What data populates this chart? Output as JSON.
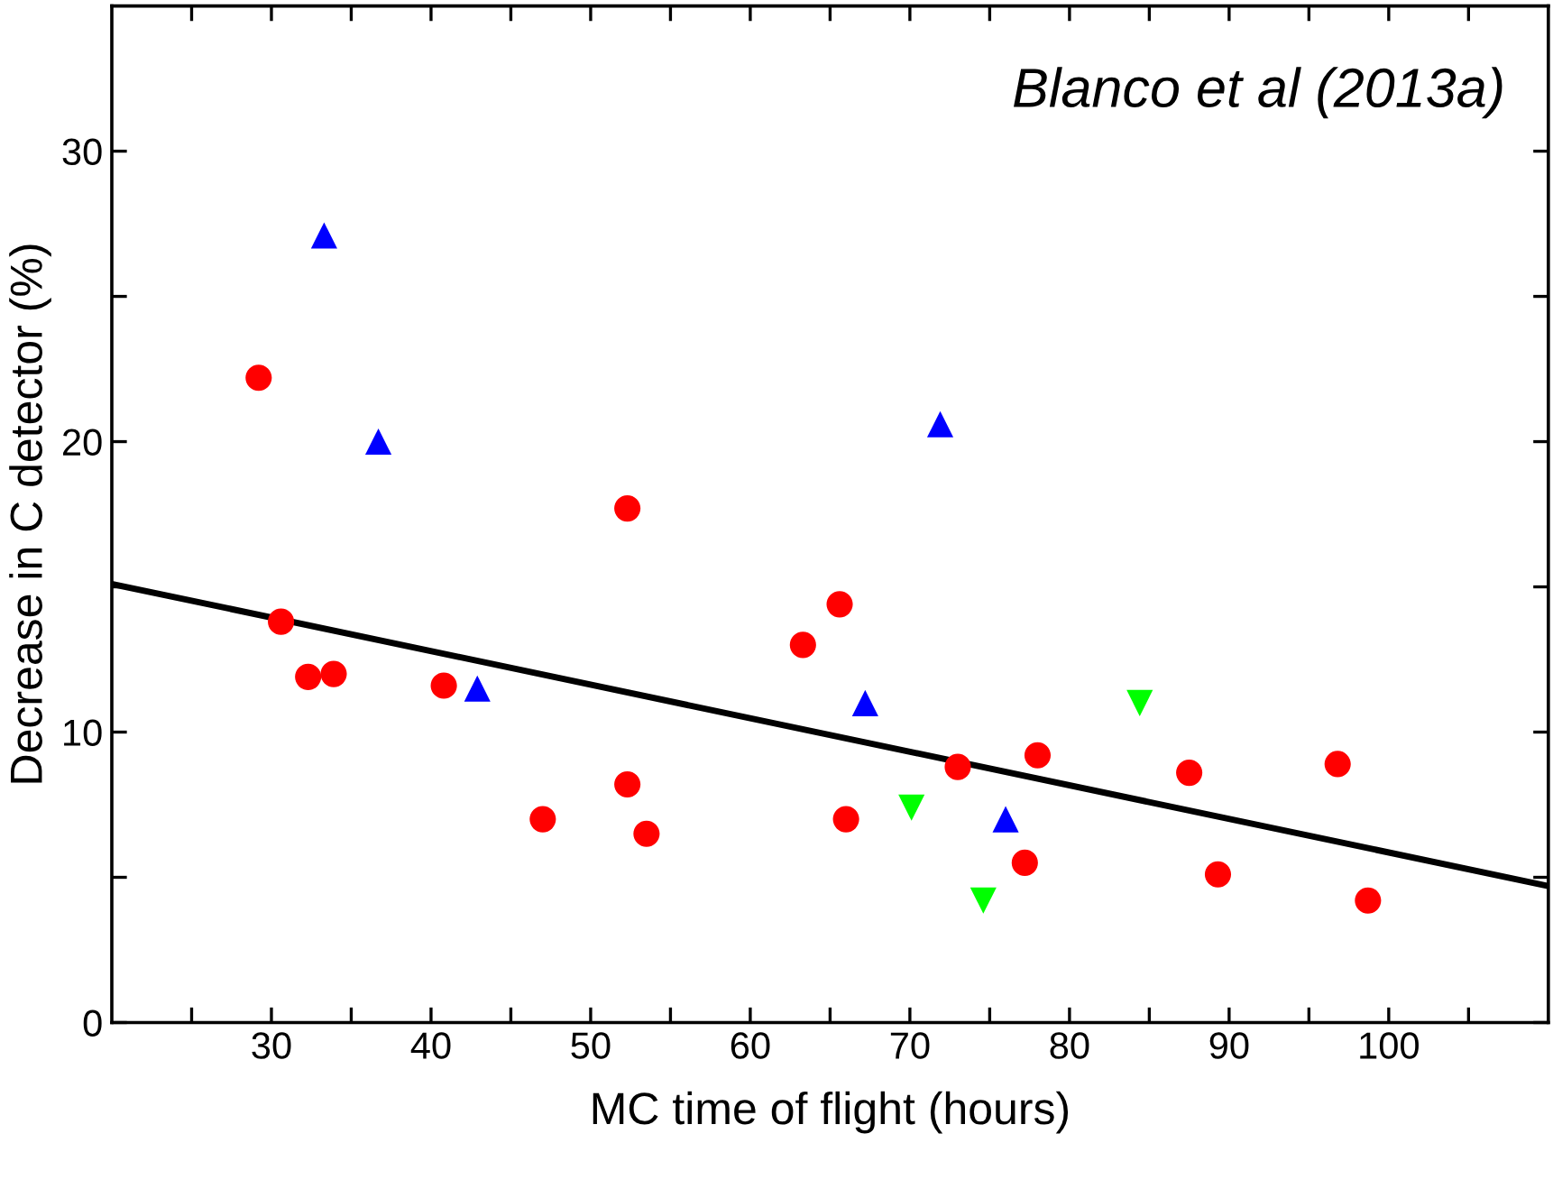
{
  "chart_data": {
    "type": "scatter",
    "xlabel": "MC time of flight (hours)",
    "ylabel": "Decrease in C detector (%)",
    "annotations": [
      "Blanco et al (2013a)"
    ],
    "xlim": [
      20,
      110
    ],
    "ylim": [
      0,
      35
    ],
    "xticks": [
      {
        "value": 25,
        "label": null
      },
      30,
      {
        "value": 35,
        "label": null
      },
      40,
      {
        "value": 45,
        "label": null
      },
      50,
      {
        "value": 55,
        "label": null
      },
      60,
      {
        "value": 65,
        "label": null
      },
      70,
      {
        "value": 75,
        "label": null
      },
      80,
      {
        "value": 85,
        "label": null
      },
      90,
      {
        "value": 95,
        "label": null
      },
      100,
      {
        "value": 105,
        "label": null
      }
    ],
    "yticks": [
      0,
      {
        "value": 5,
        "label": null
      },
      10,
      {
        "value": 15,
        "label": null
      },
      20,
      {
        "value": 25,
        "label": null
      },
      30
    ],
    "grid": false,
    "legend": false,
    "series": [
      {
        "marker": "circle",
        "color": "#ff0000",
        "x": [
          29.2,
          30.6,
          32.3,
          33.9,
          40.8,
          47.0,
          52.3,
          52.3,
          53.5,
          63.3,
          65.6,
          66.0,
          73.0,
          77.2,
          78.0,
          87.5,
          89.3,
          96.8,
          98.7
        ],
        "values": [
          22.2,
          13.8,
          11.9,
          12.0,
          11.6,
          7.0,
          17.7,
          8.2,
          6.5,
          13.0,
          14.4,
          7.0,
          8.8,
          5.5,
          9.2,
          8.6,
          5.1,
          8.9,
          4.2
        ]
      },
      {
        "marker": "triangle",
        "color": "#0000ff",
        "x": [
          33.3,
          36.7,
          42.9,
          67.2,
          71.9,
          76.0
        ],
        "values": [
          27.1,
          20.0,
          11.5,
          11.0,
          20.6,
          7.0
        ]
      },
      {
        "marker": "triangle_down",
        "color": "#00ff00",
        "x": [
          70.1,
          74.6,
          84.4
        ],
        "values": [
          7.4,
          4.2,
          11.0
        ]
      },
      {
        "type": "line",
        "marker": "none",
        "line_style": "solid",
        "color": "#000000",
        "x": [
          20,
          110
        ],
        "values": [
          15.1,
          4.7
        ]
      }
    ]
  }
}
